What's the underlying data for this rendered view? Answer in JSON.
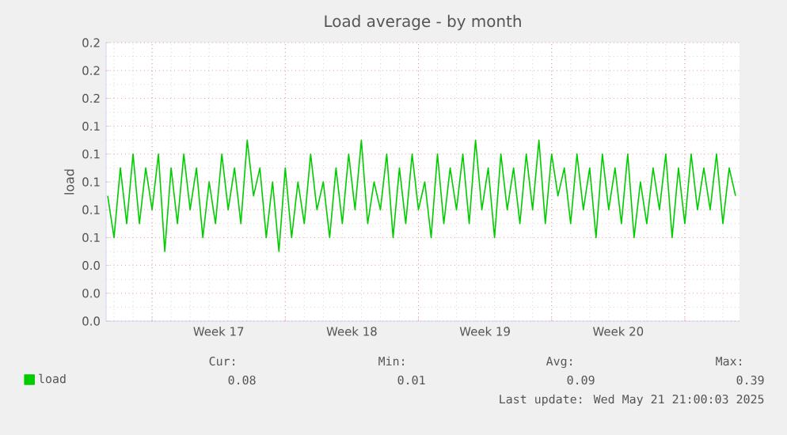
{
  "chart_data": {
    "type": "line",
    "title": "Load average - by month",
    "ylabel": "load",
    "x": [
      "2025-04-18T16:00",
      "2025-04-19T00:00",
      "2025-04-19T08:00",
      "2025-04-19T16:00",
      "2025-04-20T00:00",
      "2025-04-20T08:00",
      "2025-04-20T16:00",
      "2025-04-21T00:00",
      "2025-04-21T08:00",
      "2025-04-21T16:00",
      "2025-04-22T00:00",
      "2025-04-22T08:00",
      "2025-04-22T16:00",
      "2025-04-23T00:00",
      "2025-04-23T08:00",
      "2025-04-23T16:00",
      "2025-04-24T00:00",
      "2025-04-24T08:00",
      "2025-04-24T16:00",
      "2025-04-25T00:00",
      "2025-04-25T08:00",
      "2025-04-25T16:00",
      "2025-04-26T00:00",
      "2025-04-26T08:00",
      "2025-04-26T16:00",
      "2025-04-27T00:00",
      "2025-04-27T08:00",
      "2025-04-27T16:00",
      "2025-04-28T00:00",
      "2025-04-28T08:00",
      "2025-04-28T16:00",
      "2025-04-29T00:00",
      "2025-04-29T08:00",
      "2025-04-29T16:00",
      "2025-04-30T00:00",
      "2025-04-30T08:00",
      "2025-04-30T16:00",
      "2025-05-01T00:00",
      "2025-05-01T08:00",
      "2025-05-01T16:00",
      "2025-05-02T00:00",
      "2025-05-02T08:00",
      "2025-05-02T16:00",
      "2025-05-03T00:00",
      "2025-05-03T08:00",
      "2025-05-03T16:00",
      "2025-05-04T00:00",
      "2025-05-04T08:00",
      "2025-05-04T16:00",
      "2025-05-05T00:00",
      "2025-05-05T08:00",
      "2025-05-05T16:00",
      "2025-05-06T00:00",
      "2025-05-06T08:00",
      "2025-05-06T16:00",
      "2025-05-07T00:00",
      "2025-05-07T08:00",
      "2025-05-07T16:00",
      "2025-05-08T00:00",
      "2025-05-08T08:00",
      "2025-05-08T16:00",
      "2025-05-09T00:00",
      "2025-05-09T08:00",
      "2025-05-09T16:00",
      "2025-05-10T00:00",
      "2025-05-10T08:00",
      "2025-05-10T16:00",
      "2025-05-11T00:00",
      "2025-05-11T08:00",
      "2025-05-11T16:00",
      "2025-05-12T00:00",
      "2025-05-12T08:00",
      "2025-05-12T16:00",
      "2025-05-13T00:00",
      "2025-05-13T08:00",
      "2025-05-13T16:00",
      "2025-05-14T00:00",
      "2025-05-14T08:00",
      "2025-05-14T16:00",
      "2025-05-15T00:00",
      "2025-05-15T08:00",
      "2025-05-15T16:00",
      "2025-05-16T00:00",
      "2025-05-16T08:00",
      "2025-05-16T16:00",
      "2025-05-17T00:00",
      "2025-05-17T08:00",
      "2025-05-17T16:00",
      "2025-05-18T00:00",
      "2025-05-18T08:00",
      "2025-05-18T16:00",
      "2025-05-19T00:00",
      "2025-05-19T08:00",
      "2025-05-19T16:00",
      "2025-05-20T00:00",
      "2025-05-20T08:00",
      "2025-05-20T16:00",
      "2025-05-21T00:00",
      "2025-05-21T08:00",
      "2025-05-21T16:00"
    ],
    "series": [
      {
        "name": "load",
        "color": "#00cc00",
        "values": [
          0.09,
          0.06,
          0.11,
          0.07,
          0.12,
          0.07,
          0.11,
          0.08,
          0.12,
          0.05,
          0.11,
          0.07,
          0.12,
          0.08,
          0.11,
          0.06,
          0.1,
          0.07,
          0.12,
          0.08,
          0.11,
          0.07,
          0.13,
          0.09,
          0.11,
          0.06,
          0.1,
          0.05,
          0.11,
          0.06,
          0.1,
          0.07,
          0.12,
          0.08,
          0.1,
          0.06,
          0.11,
          0.07,
          0.12,
          0.08,
          0.13,
          0.07,
          0.1,
          0.08,
          0.12,
          0.06,
          0.11,
          0.07,
          0.12,
          0.08,
          0.1,
          0.06,
          0.12,
          0.07,
          0.11,
          0.08,
          0.12,
          0.07,
          0.13,
          0.08,
          0.11,
          0.06,
          0.12,
          0.08,
          0.11,
          0.07,
          0.12,
          0.08,
          0.13,
          0.07,
          0.12,
          0.09,
          0.11,
          0.07,
          0.12,
          0.08,
          0.11,
          0.06,
          0.12,
          0.08,
          0.11,
          0.07,
          0.12,
          0.06,
          0.1,
          0.07,
          0.11,
          0.08,
          0.12,
          0.06,
          0.11,
          0.07,
          0.12,
          0.08,
          0.11,
          0.08,
          0.12,
          0.07,
          0.11,
          0.09
        ]
      }
    ],
    "xlim": [
      "2025-04-18T14:00",
      "2025-05-21T21:00"
    ],
    "xticks": [
      {
        "value": "2025-04-21",
        "label": null
      },
      {
        "value": "2025-04-24T12:00",
        "label": "Week 17"
      },
      {
        "value": "2025-04-28",
        "label": null
      },
      {
        "value": "2025-05-01T12:00",
        "label": "Week 18"
      },
      {
        "value": "2025-05-05",
        "label": null
      },
      {
        "value": "2025-05-08T12:00",
        "label": "Week 19"
      },
      {
        "value": "2025-05-12",
        "label": null
      },
      {
        "value": "2025-05-15T12:00",
        "label": "Week 20"
      },
      {
        "value": "2025-05-19",
        "label": null
      }
    ],
    "ylim": [
      0,
      0.2
    ],
    "yticks": [
      {
        "value": 0,
        "label": "0.0"
      },
      {
        "value": 0.02,
        "label": "0.0"
      },
      {
        "value": 0.04,
        "label": "0.0"
      },
      {
        "value": 0.06,
        "label": "0.1"
      },
      {
        "value": 0.08,
        "label": "0.1"
      },
      {
        "value": 0.1,
        "label": "0.1"
      },
      {
        "value": 0.12,
        "label": "0.1"
      },
      {
        "value": 0.14,
        "label": "0.1"
      },
      {
        "value": 0.16,
        "label": "0.2"
      },
      {
        "value": 0.18,
        "label": "0.2"
      },
      {
        "value": 0.2,
        "label": "0.2"
      }
    ],
    "grid": true,
    "legend": "bottom left",
    "marker": "none",
    "line_style": "solid",
    "annotations": [
      "Cur:",
      "0.08",
      "Min:",
      "0.01",
      "Avg:",
      "0.09",
      "Max:",
      "0.39",
      "Last update: Wed May 21 21:00:03 2025"
    ]
  }
}
